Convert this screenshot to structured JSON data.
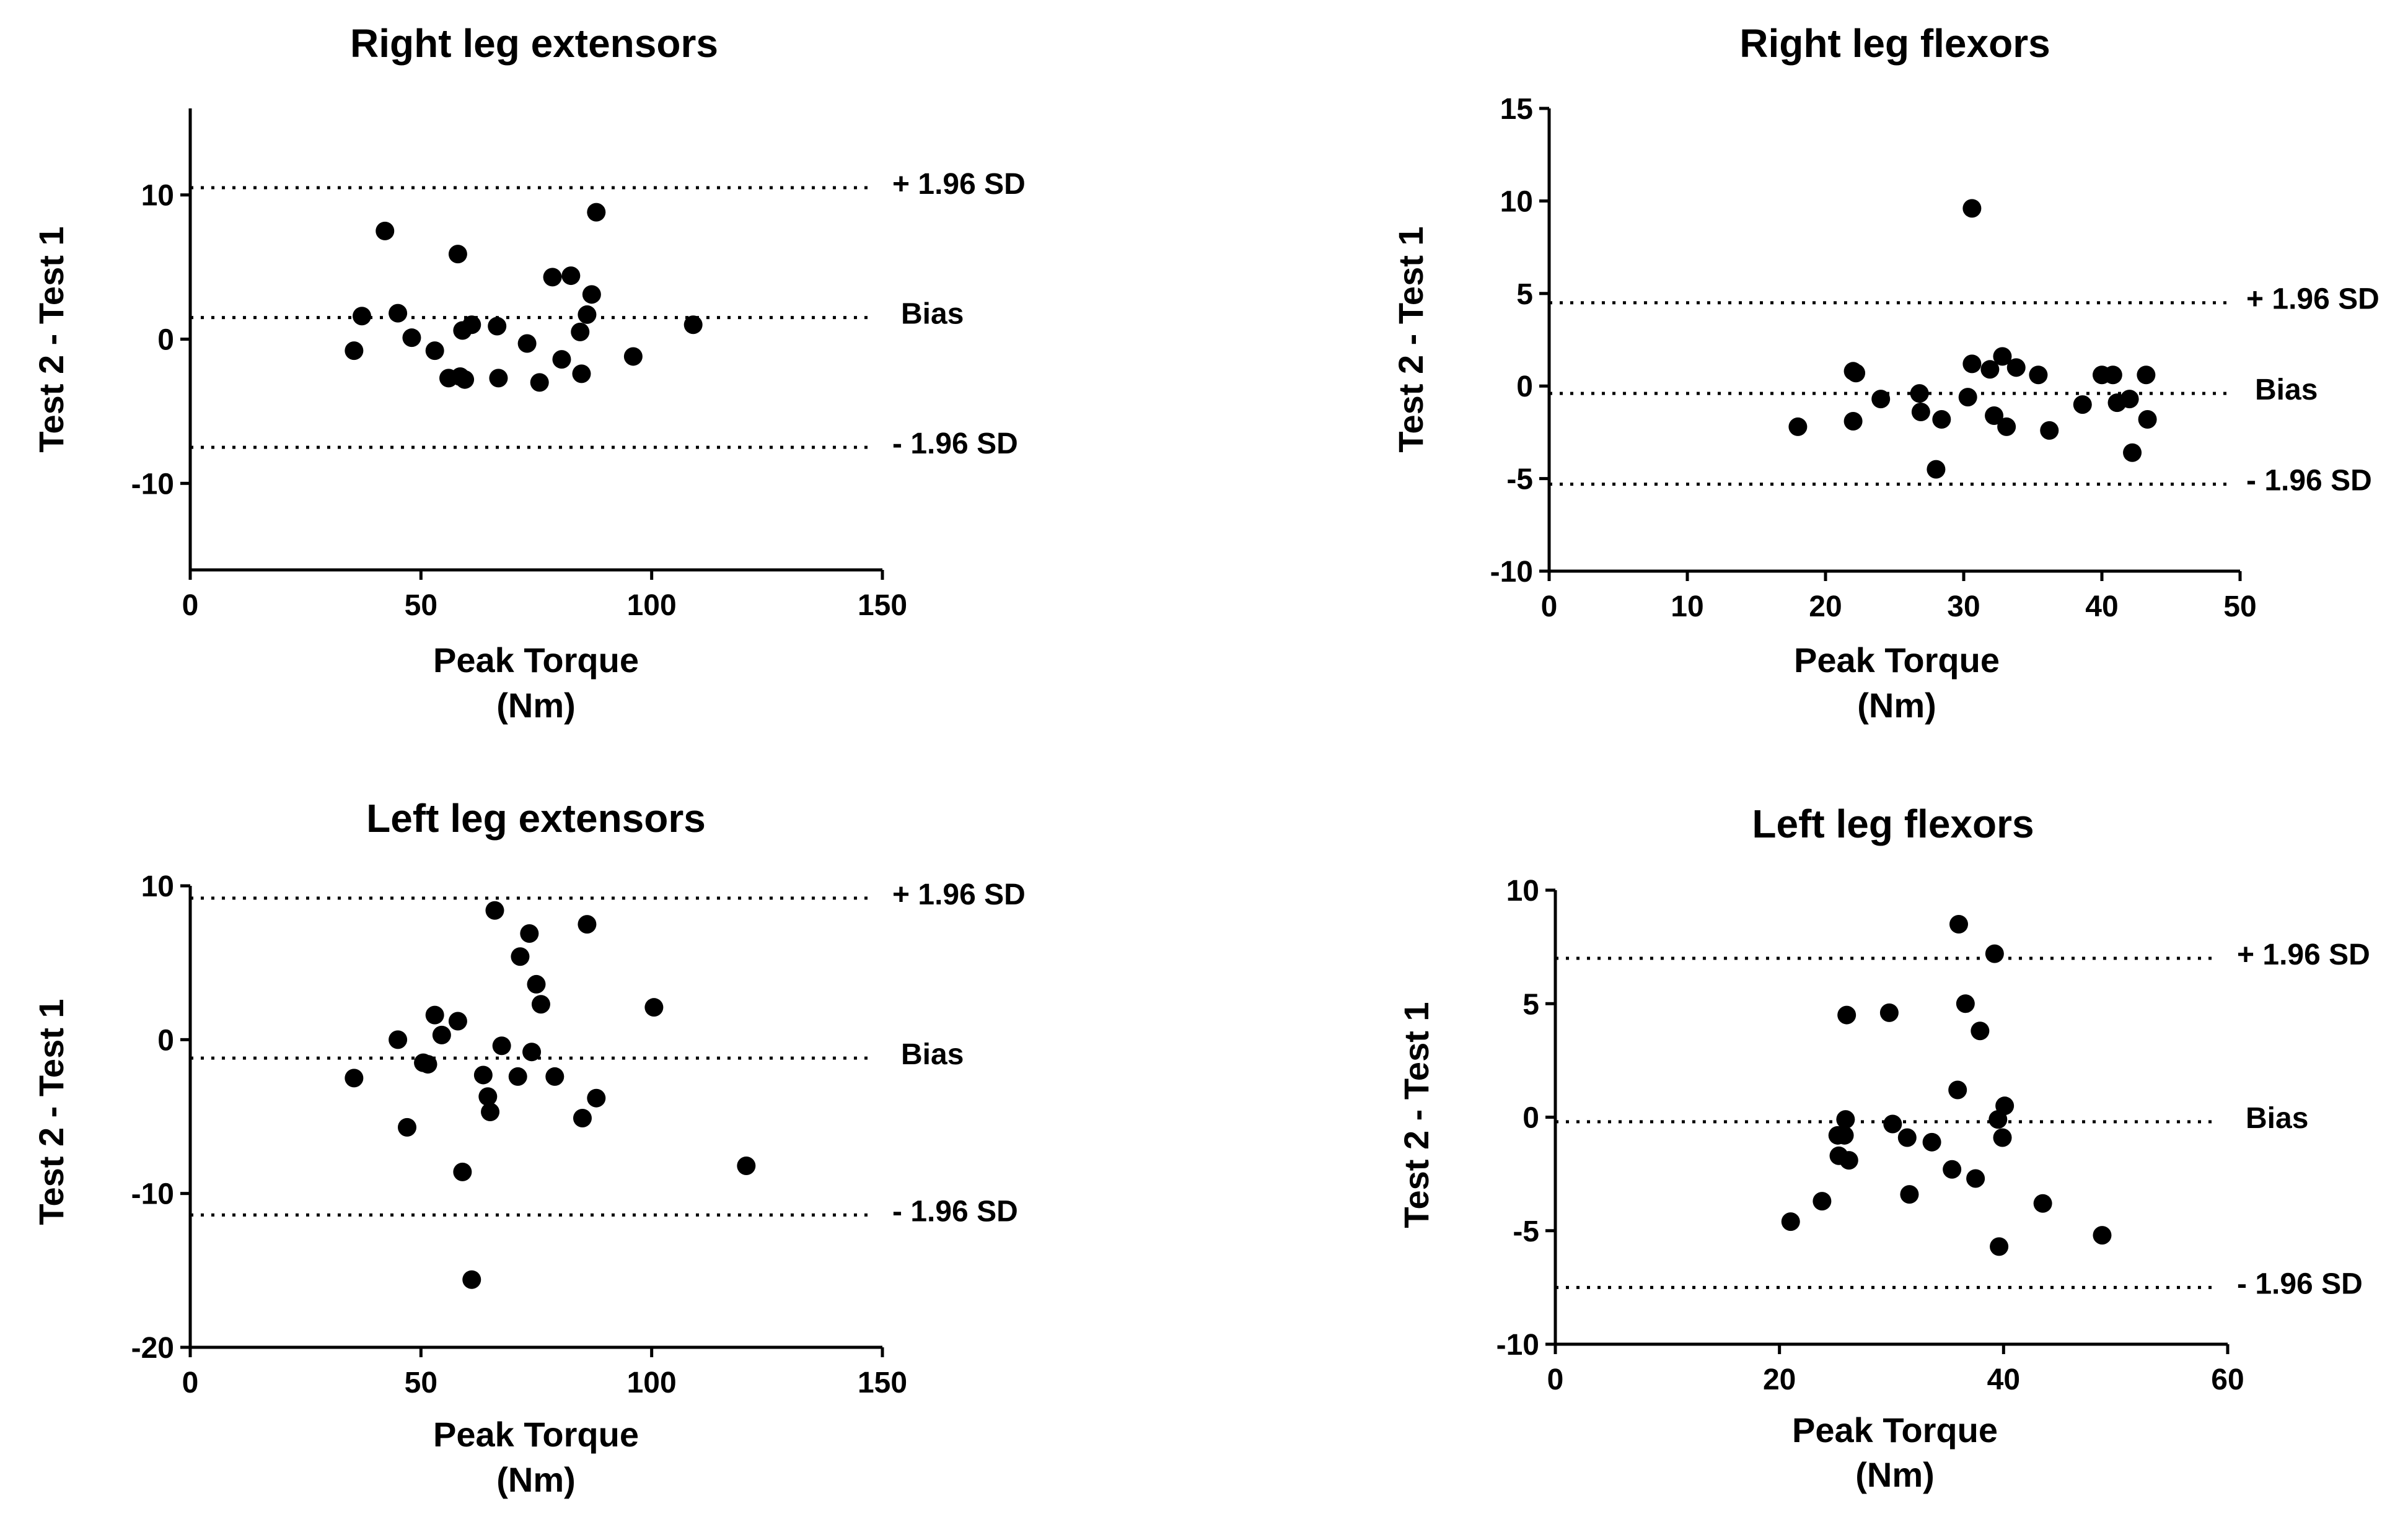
{
  "colors": {
    "background": "#ffffff",
    "ink": "#000000"
  },
  "chart_data": [
    {
      "type": "scatter",
      "title": "Right leg extensors",
      "xlabel_line1": "Peak Torque",
      "xlabel_line2": "(Nm)",
      "ylabel": "Test 2 - Test 1",
      "xlim": [
        0,
        150
      ],
      "ylim": [
        -16,
        16
      ],
      "xticks": [
        0,
        50,
        100,
        150
      ],
      "yticks": [
        -10,
        0,
        10
      ],
      "reference_lines": [
        {
          "label": "+ 1.96 SD",
          "value": 10.5
        },
        {
          "label": "Bias",
          "value": 1.5
        },
        {
          "label": "- 1.96 SD",
          "value": -7.5
        }
      ],
      "points": [
        [
          35.5,
          -0.8
        ],
        [
          37.2,
          1.6
        ],
        [
          42.2,
          7.5
        ],
        [
          45,
          1.8
        ],
        [
          48,
          0.1
        ],
        [
          53,
          -0.8
        ],
        [
          56,
          -2.7
        ],
        [
          58,
          5.9
        ],
        [
          58.5,
          -2.6
        ],
        [
          59,
          0.6
        ],
        [
          59.5,
          -2.8
        ],
        [
          61,
          1
        ],
        [
          66.5,
          0.9
        ],
        [
          66.8,
          -2.7
        ],
        [
          73,
          -0.3
        ],
        [
          75.7,
          -3
        ],
        [
          78.5,
          4.3
        ],
        [
          80.5,
          -1.4
        ],
        [
          82.5,
          4.4
        ],
        [
          84.5,
          0.5
        ],
        [
          84.8,
          -2.4
        ],
        [
          86,
          1.7
        ],
        [
          87,
          3.1
        ],
        [
          88,
          8.8
        ],
        [
          96,
          -1.2
        ],
        [
          109,
          1
        ]
      ]
    },
    {
      "type": "scatter",
      "title": "Right leg flexors",
      "xlabel_line1": "Peak Torque",
      "xlabel_line2": "(Nm)",
      "ylabel": "Test 2 - Test 1",
      "xlim": [
        0,
        50
      ],
      "ylim": [
        -10,
        15
      ],
      "xticks": [
        0,
        10,
        20,
        30,
        40,
        50
      ],
      "yticks": [
        -10,
        -5,
        0,
        5,
        10,
        15
      ],
      "reference_lines": [
        {
          "label": "+ 1.96 SD",
          "value": 4.5
        },
        {
          "label": "Bias",
          "value": -0.4
        },
        {
          "label": "- 1.96 SD",
          "value": -5.3
        }
      ],
      "points": [
        [
          18,
          -2.2
        ],
        [
          22,
          0.8
        ],
        [
          22.2,
          0.7
        ],
        [
          22,
          -1.9
        ],
        [
          24,
          -0.7
        ],
        [
          26.8,
          -0.4
        ],
        [
          26.9,
          -1.4
        ],
        [
          28,
          -4.5
        ],
        [
          28.4,
          -1.8
        ],
        [
          30.3,
          -0.6
        ],
        [
          30.6,
          1.2
        ],
        [
          30.6,
          9.6
        ],
        [
          31.9,
          0.9
        ],
        [
          32.2,
          -1.6
        ],
        [
          32.8,
          1.6
        ],
        [
          33.1,
          -2.2
        ],
        [
          33.8,
          1
        ],
        [
          35.4,
          0.6
        ],
        [
          36.2,
          -2.4
        ],
        [
          38.6,
          -1
        ],
        [
          40,
          0.6
        ],
        [
          40.8,
          0.6
        ],
        [
          41.1,
          -0.9
        ],
        [
          42,
          -0.7
        ],
        [
          42.2,
          -3.6
        ],
        [
          43.2,
          0.6
        ],
        [
          43.3,
          -1.8
        ]
      ]
    },
    {
      "type": "scatter",
      "title": "Left leg extensors",
      "xlabel_line1": "Peak Torque",
      "xlabel_line2": "(Nm)",
      "ylabel": "Test 2 - Test 1",
      "xlim": [
        0,
        150
      ],
      "ylim": [
        -20,
        10
      ],
      "xticks": [
        0,
        50,
        100,
        150
      ],
      "yticks": [
        -20,
        -10,
        0,
        10
      ],
      "reference_lines": [
        {
          "label": "+ 1.96 SD",
          "value": 9.2
        },
        {
          "label": "Bias",
          "value": -1.2
        },
        {
          "label": "- 1.96 SD",
          "value": -11.4
        }
      ],
      "points": [
        [
          35.5,
          -2.5
        ],
        [
          45,
          0
        ],
        [
          47,
          -5.7
        ],
        [
          50.5,
          -1.5
        ],
        [
          51.5,
          -1.6
        ],
        [
          53,
          1.6
        ],
        [
          54.5,
          0.3
        ],
        [
          58,
          1.2
        ],
        [
          59,
          -8.6
        ],
        [
          61,
          -15.6
        ],
        [
          63.5,
          -2.3
        ],
        [
          64.5,
          -3.7
        ],
        [
          65,
          -4.7
        ],
        [
          66,
          8.4
        ],
        [
          67.5,
          -0.4
        ],
        [
          71,
          -2.4
        ],
        [
          71.5,
          5.4
        ],
        [
          73.5,
          6.9
        ],
        [
          74,
          -0.8
        ],
        [
          75,
          3.6
        ],
        [
          76,
          2.3
        ],
        [
          79,
          -2.4
        ],
        [
          85,
          -5.1
        ],
        [
          86,
          7.5
        ],
        [
          88,
          -3.8
        ],
        [
          100.5,
          2.1
        ],
        [
          120.5,
          -8.2
        ]
      ]
    },
    {
      "type": "scatter",
      "title": "Left leg flexors",
      "xlabel_line1": "Peak Torque",
      "xlabel_line2": "(Nm)",
      "ylabel": "Test 2 - Test 1",
      "xlim": [
        0,
        60
      ],
      "ylim": [
        -10,
        10
      ],
      "xticks": [
        0,
        20,
        40,
        60
      ],
      "yticks": [
        -10,
        -5,
        0,
        5,
        10
      ],
      "reference_lines": [
        {
          "label": "+ 1.96 SD",
          "value": 7
        },
        {
          "label": "Bias",
          "value": -0.2
        },
        {
          "label": "- 1.96 SD",
          "value": -7.5
        }
      ],
      "points": [
        [
          21,
          -4.6
        ],
        [
          23.8,
          -3.7
        ],
        [
          25.2,
          -0.8
        ],
        [
          25.3,
          -1.7
        ],
        [
          25.8,
          -0.8
        ],
        [
          25.9,
          -0.1
        ],
        [
          26,
          4.5
        ],
        [
          26.2,
          -1.9
        ],
        [
          29.8,
          4.6
        ],
        [
          30.1,
          -0.3
        ],
        [
          31.4,
          -0.9
        ],
        [
          31.6,
          -3.4
        ],
        [
          33.6,
          -1.1
        ],
        [
          35.4,
          -2.3
        ],
        [
          35.9,
          1.2
        ],
        [
          36,
          8.5
        ],
        [
          36.6,
          5
        ],
        [
          37.5,
          -2.7
        ],
        [
          37.9,
          3.8
        ],
        [
          39.2,
          7.2
        ],
        [
          39.5,
          -0.1
        ],
        [
          39.6,
          -5.7
        ],
        [
          39.9,
          -0.9
        ],
        [
          40.1,
          0.5
        ],
        [
          43.5,
          -3.8
        ],
        [
          48.8,
          -5.2
        ]
      ]
    }
  ]
}
